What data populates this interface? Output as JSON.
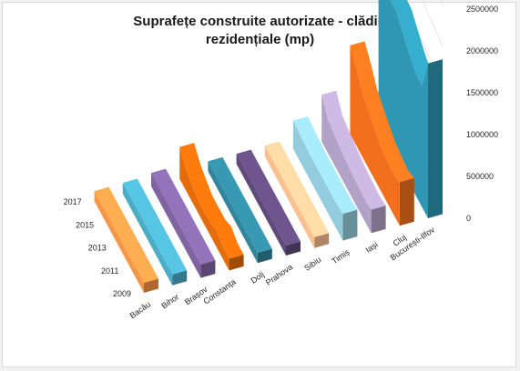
{
  "chart_data": {
    "type": "area",
    "title_lines": [
      "Suprafețe construite autorizate - clădiri",
      "rezidențiale (mp)"
    ],
    "categories": [
      "Bacău",
      "Bihor",
      "Brașov",
      "Constanța",
      "Dolj",
      "Prahova",
      "Sibiu",
      "Timiș",
      "Iași",
      "Cluj",
      "București-Ilfov"
    ],
    "x_ticks": [
      "2009",
      "2011",
      "2013",
      "2015",
      "2017"
    ],
    "x": [
      "2009",
      "2010",
      "2011",
      "2012",
      "2013",
      "2014",
      "2015",
      "2016",
      "2017"
    ],
    "ylim": [
      0,
      2500000
    ],
    "yticks": [
      "0",
      "500000",
      "1000000",
      "1500000",
      "2000000",
      "2500000"
    ],
    "series": [
      {
        "name": "Bacău",
        "color": "#f79646",
        "values": [
          120000,
          120000,
          120000,
          120000,
          120000,
          120000,
          120000,
          120000,
          120000
        ]
      },
      {
        "name": "Bihor",
        "color": "#4bacc6",
        "values": [
          130000,
          130000,
          130000,
          130000,
          130000,
          130000,
          130000,
          130000,
          130000
        ]
      },
      {
        "name": "Brașov",
        "color": "#8064a2",
        "values": [
          160000,
          160000,
          160000,
          160000,
          160000,
          160000,
          160000,
          160000,
          160000
        ]
      },
      {
        "name": "Constanța",
        "color": "#e46c0a",
        "values": [
          140000,
          140000,
          200000,
          150000,
          150000,
          150000,
          200000,
          260000,
          380000
        ]
      },
      {
        "name": "Dolj",
        "color": "#31859c",
        "values": [
          120000,
          120000,
          120000,
          120000,
          120000,
          120000,
          120000,
          120000,
          120000
        ]
      },
      {
        "name": "Prahova",
        "color": "#604a7b",
        "values": [
          120000,
          120000,
          120000,
          120000,
          120000,
          120000,
          120000,
          120000,
          120000
        ]
      },
      {
        "name": "Sibiu",
        "color": "#fac090",
        "values": [
          130000,
          130000,
          130000,
          130000,
          130000,
          130000,
          130000,
          130000,
          130000
        ]
      },
      {
        "name": "Timiș",
        "color": "#93cddd",
        "values": [
          320000,
          300000,
          300000,
          300000,
          300000,
          300000,
          310000,
          320000,
          340000
        ]
      },
      {
        "name": "Iași",
        "color": "#b3a2c7",
        "values": [
          280000,
          260000,
          270000,
          280000,
          300000,
          330000,
          360000,
          400000,
          560000
        ]
      },
      {
        "name": "Cluj",
        "color": "#f26f1d",
        "values": [
          520000,
          480000,
          500000,
          530000,
          600000,
          680000,
          760000,
          930000,
          1060000
        ]
      },
      {
        "name": "București-Ilfov",
        "color": "#2f97b3",
        "values": [
          1850000,
          1450000,
          1460000,
          1540000,
          1650000,
          1760000,
          1780000,
          1820000,
          2470000
        ]
      }
    ]
  }
}
